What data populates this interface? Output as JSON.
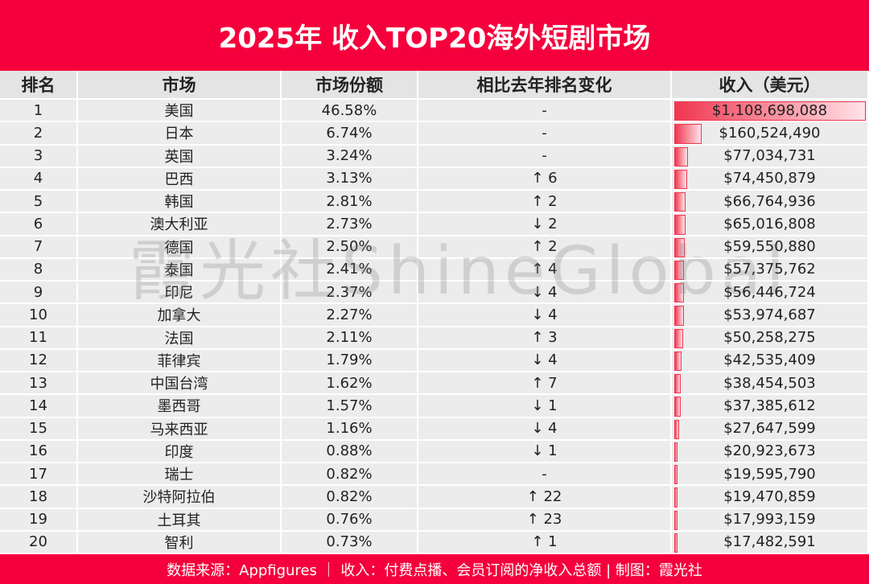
{
  "header": {
    "title": "2025年 收入TOP20海外短剧市场"
  },
  "watermark": "霞光社ShineGlobal",
  "table": {
    "columns": [
      "排名",
      "市场",
      "市场份额",
      "相比去年排名变化",
      "收入（美元）"
    ],
    "rows": [
      [
        1,
        "美国",
        "46.58%",
        "-",
        {
          "value": 1108698088,
          "label": "$1,108,698,088"
        }
      ],
      [
        2,
        "日本",
        "6.74%",
        "-",
        {
          "value": 160524490,
          "label": "$160,524,490"
        }
      ],
      [
        3,
        "英国",
        "3.24%",
        "-",
        {
          "value": 77034731,
          "label": "$77,034,731"
        }
      ],
      [
        4,
        "巴西",
        "3.13%",
        "↑ 6",
        {
          "value": 74450879,
          "label": "$74,450,879"
        }
      ],
      [
        5,
        "韩国",
        "2.81%",
        "↑ 2",
        {
          "value": 66764936,
          "label": "$66,764,936"
        }
      ],
      [
        6,
        "澳大利亚",
        "2.73%",
        "↓ 2",
        {
          "value": 65016808,
          "label": "$65,016,808"
        }
      ],
      [
        7,
        "德国",
        "2.50%",
        "↑ 2",
        {
          "value": 59550880,
          "label": "$59,550,880"
        }
      ],
      [
        8,
        "泰国",
        "2.41%",
        "↑ 4",
        {
          "value": 57375762,
          "label": "$57,375,762"
        }
      ],
      [
        9,
        "印尼",
        "2.37%",
        "↓ 4",
        {
          "value": 56446724,
          "label": "$56,446,724"
        }
      ],
      [
        10,
        "加拿大",
        "2.27%",
        "↓ 4",
        {
          "value": 53974687,
          "label": "$53,974,687"
        }
      ],
      [
        11,
        "法国",
        "2.11%",
        "↑ 3",
        {
          "value": 50258275,
          "label": "$50,258,275"
        }
      ],
      [
        12,
        "菲律宾",
        "1.79%",
        "↓ 4",
        {
          "value": 42535409,
          "label": "$42,535,409"
        }
      ],
      [
        13,
        "中国台湾",
        "1.62%",
        "↑ 7",
        {
          "value": 38454503,
          "label": "$38,454,503"
        }
      ],
      [
        14,
        "墨西哥",
        "1.57%",
        "↓ 1",
        {
          "value": 37385612,
          "label": "$37,385,612"
        }
      ],
      [
        15,
        "马来西亚",
        "1.16%",
        "↓ 4",
        {
          "value": 27647599,
          "label": "$27,647,599"
        }
      ],
      [
        16,
        "印度",
        "0.88%",
        "↓ 1",
        {
          "value": 20923673,
          "label": "$20,923,673"
        }
      ],
      [
        17,
        "瑞士",
        "0.82%",
        "-",
        {
          "value": 19595790,
          "label": "$19,595,790"
        }
      ],
      [
        18,
        "沙特阿拉伯",
        "0.82%",
        "↑ 22",
        {
          "value": 19470859,
          "label": "$19,470,859"
        }
      ],
      [
        19,
        "土耳其",
        "0.76%",
        "↑ 23",
        {
          "value": 17993159,
          "label": "$17,993,159"
        }
      ],
      [
        20,
        "智利",
        "0.73%",
        "↑ 1",
        {
          "value": 17482591,
          "label": "$17,482,591"
        }
      ]
    ]
  },
  "footer": "数据来源：Appfigures ｜ 收入：付费点播、会员订阅的净收入总额 | 制图：霞光社"
}
